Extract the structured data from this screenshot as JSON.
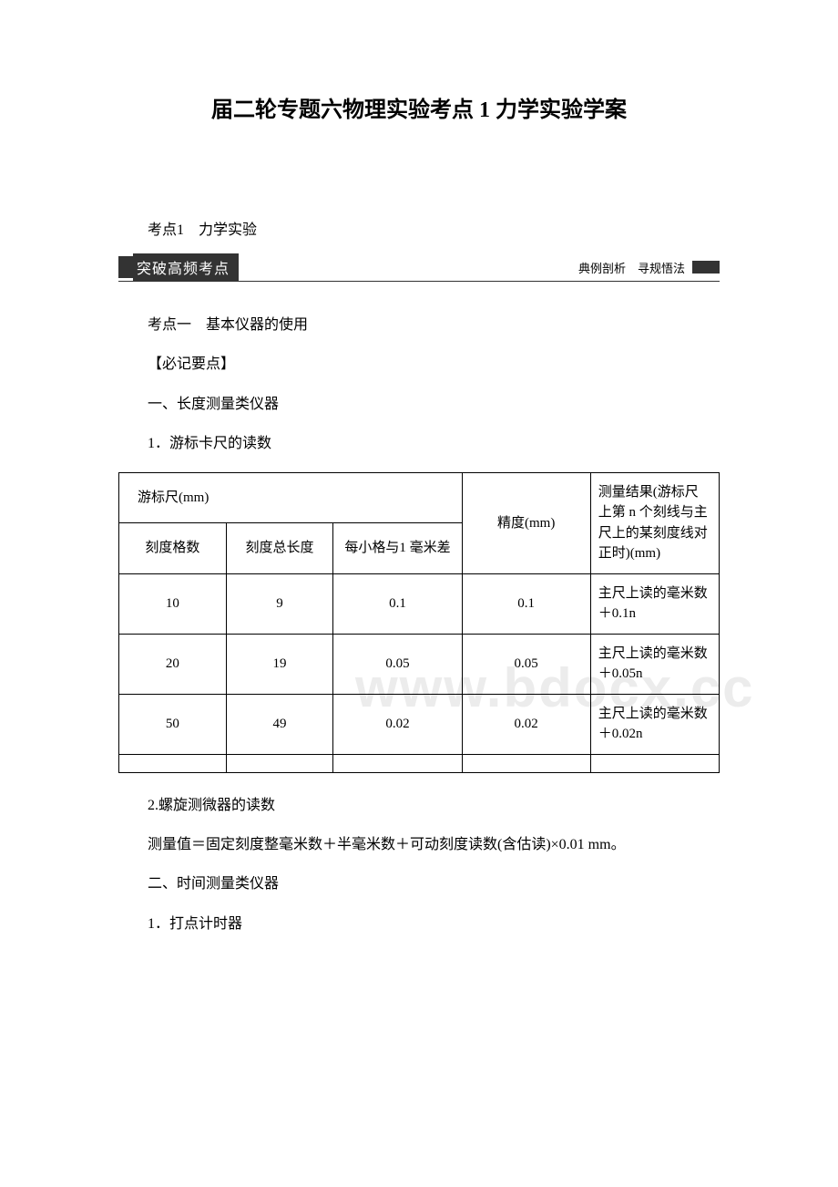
{
  "title": "届二轮专题六物理实验考点 1 力学实验学案",
  "line1": "考点1　力学实验",
  "banner_left": "突破高频考点",
  "banner_right": "典例剖析　寻规悟法",
  "section1": "考点一　基本仪器的使用",
  "section2": "【必记要点】",
  "section3": "一、长度测量类仪器",
  "section4": "1．游标卡尺的读数",
  "table": {
    "header_left": "游标尺(mm)",
    "header_precision": "精度(mm)",
    "header_result": "测量结果(游标尺上第 n 个刻线与主尺上的某刻度线对正时)(mm)",
    "sub1": "刻度格数",
    "sub2": "刻度总长度",
    "sub3": "每小格与1 毫米差",
    "rows": [
      {
        "c1": "10",
        "c2": "9",
        "c3": "0.1",
        "c4": "0.1",
        "c5": "主尺上读的毫米数＋0.1n"
      },
      {
        "c1": "20",
        "c2": "19",
        "c3": "0.05",
        "c4": "0.05",
        "c5": "主尺上读的毫米数＋0.05n"
      },
      {
        "c1": "50",
        "c2": "49",
        "c3": "0.02",
        "c4": "0.02",
        "c5": "主尺上读的毫米数＋0.02n"
      }
    ]
  },
  "after1": "2.螺旋测微器的读数",
  "after2": "测量值＝固定刻度整毫米数＋半毫米数＋可动刻度读数(含估读)×0.01 mm。",
  "after3": "二、时间测量类仪器",
  "after4": "1．打点计时器",
  "watermark": "www.bdocx.cc"
}
